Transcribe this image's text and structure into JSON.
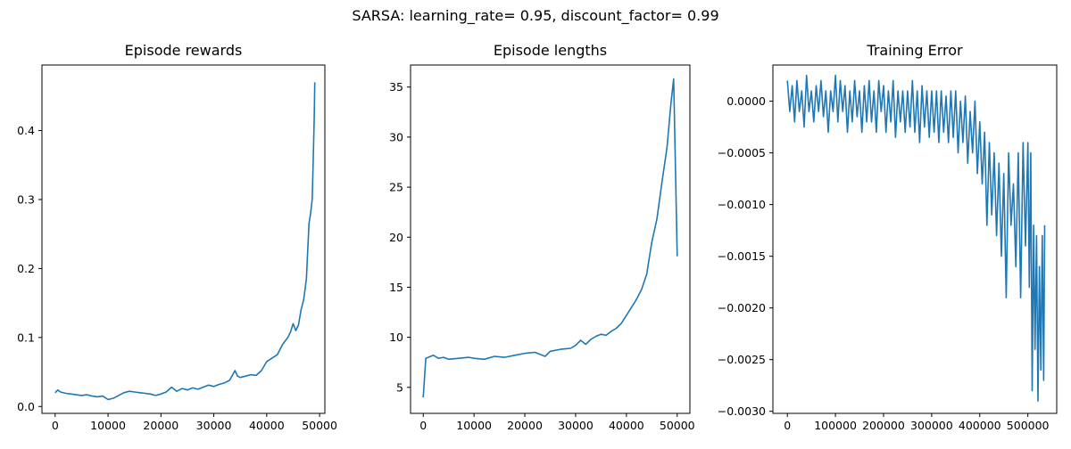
{
  "suptitle": "SARSA: learning_rate= 0.95, discount_factor= 0.99",
  "chart_data": [
    {
      "type": "line",
      "title": "Episode rewards",
      "xlabel": "",
      "ylabel": "",
      "xlim": [
        -2500,
        51000
      ],
      "ylim": [
        -0.01,
        0.495
      ],
      "xticks": [
        0,
        10000,
        20000,
        30000,
        40000,
        50000
      ],
      "xtick_labels": [
        "0",
        "10000",
        "20000",
        "30000",
        "40000",
        "50000"
      ],
      "yticks": [
        0.0,
        0.1,
        0.2,
        0.3,
        0.4
      ],
      "ytick_labels": [
        "0.0",
        "0.1",
        "0.2",
        "0.3",
        "0.4"
      ],
      "grid": false,
      "series": [
        {
          "color": "#1f77b4",
          "points": [
            [
              0,
              0.02
            ],
            [
              500,
              0.024
            ],
            [
              1000,
              0.021
            ],
            [
              2000,
              0.019
            ],
            [
              3000,
              0.018
            ],
            [
              4000,
              0.017
            ],
            [
              5000,
              0.016
            ],
            [
              6000,
              0.017
            ],
            [
              7000,
              0.015
            ],
            [
              8000,
              0.014
            ],
            [
              9000,
              0.015
            ],
            [
              10000,
              0.01
            ],
            [
              11000,
              0.012
            ],
            [
              12000,
              0.016
            ],
            [
              13000,
              0.02
            ],
            [
              14000,
              0.022
            ],
            [
              15000,
              0.021
            ],
            [
              16000,
              0.02
            ],
            [
              17000,
              0.019
            ],
            [
              18000,
              0.018
            ],
            [
              19000,
              0.016
            ],
            [
              20000,
              0.018
            ],
            [
              21000,
              0.021
            ],
            [
              22000,
              0.028
            ],
            [
              23000,
              0.022
            ],
            [
              24000,
              0.026
            ],
            [
              25000,
              0.024
            ],
            [
              26000,
              0.027
            ],
            [
              27000,
              0.025
            ],
            [
              28000,
              0.028
            ],
            [
              29000,
              0.031
            ],
            [
              30000,
              0.029
            ],
            [
              31000,
              0.032
            ],
            [
              32000,
              0.034
            ],
            [
              33000,
              0.038
            ],
            [
              34000,
              0.052
            ],
            [
              34500,
              0.044
            ],
            [
              35000,
              0.042
            ],
            [
              36000,
              0.044
            ],
            [
              37000,
              0.046
            ],
            [
              38000,
              0.045
            ],
            [
              39000,
              0.052
            ],
            [
              40000,
              0.065
            ],
            [
              41000,
              0.07
            ],
            [
              42000,
              0.075
            ],
            [
              43000,
              0.09
            ],
            [
              44000,
              0.1
            ],
            [
              44500,
              0.108
            ],
            [
              45000,
              0.12
            ],
            [
              45500,
              0.11
            ],
            [
              46000,
              0.118
            ],
            [
              46500,
              0.14
            ],
            [
              47000,
              0.155
            ],
            [
              47500,
              0.185
            ],
            [
              48000,
              0.265
            ],
            [
              48300,
              0.28
            ],
            [
              48600,
              0.3
            ],
            [
              48800,
              0.36
            ],
            [
              49000,
              0.42
            ],
            [
              49100,
              0.47
            ]
          ]
        }
      ]
    },
    {
      "type": "line",
      "title": "Episode lengths",
      "xlabel": "",
      "ylabel": "",
      "xlim": [
        -2500,
        52500
      ],
      "ylim": [
        2.4,
        37.2
      ],
      "xticks": [
        0,
        10000,
        20000,
        30000,
        40000,
        50000
      ],
      "xtick_labels": [
        "0",
        "10000",
        "20000",
        "30000",
        "40000",
        "50000"
      ],
      "yticks": [
        5,
        10,
        15,
        20,
        25,
        30,
        35
      ],
      "ytick_labels": [
        "5",
        "10",
        "15",
        "20",
        "25",
        "30",
        "35"
      ],
      "grid": false,
      "series": [
        {
          "color": "#1f77b4",
          "points": [
            [
              0,
              4.0
            ],
            [
              500,
              7.9
            ],
            [
              1000,
              8.0
            ],
            [
              2000,
              8.2
            ],
            [
              3000,
              7.9
            ],
            [
              4000,
              8.0
            ],
            [
              5000,
              7.8
            ],
            [
              7000,
              7.9
            ],
            [
              9000,
              8.0
            ],
            [
              10000,
              7.9
            ],
            [
              12000,
              7.8
            ],
            [
              14000,
              8.1
            ],
            [
              16000,
              8.0
            ],
            [
              18000,
              8.2
            ],
            [
              20000,
              8.4
            ],
            [
              22000,
              8.5
            ],
            [
              24000,
              8.1
            ],
            [
              25000,
              8.6
            ],
            [
              27000,
              8.8
            ],
            [
              29000,
              8.9
            ],
            [
              30000,
              9.2
            ],
            [
              31000,
              9.7
            ],
            [
              32000,
              9.3
            ],
            [
              33000,
              9.8
            ],
            [
              34000,
              10.1
            ],
            [
              35000,
              10.3
            ],
            [
              36000,
              10.2
            ],
            [
              37000,
              10.6
            ],
            [
              38000,
              10.9
            ],
            [
              39000,
              11.4
            ],
            [
              40000,
              12.2
            ],
            [
              41000,
              13.0
            ],
            [
              42000,
              13.8
            ],
            [
              43000,
              14.8
            ],
            [
              44000,
              16.3
            ],
            [
              45000,
              19.5
            ],
            [
              46000,
              21.8
            ],
            [
              47000,
              25.5
            ],
            [
              48000,
              29.0
            ],
            [
              48800,
              33.5
            ],
            [
              49300,
              35.8
            ],
            [
              50000,
              18.1
            ]
          ]
        }
      ]
    },
    {
      "type": "line",
      "title": "Training Error",
      "xlabel": "",
      "ylabel": "",
      "xlim": [
        -30000,
        560000
      ],
      "ylim": [
        -0.00302,
        0.00035
      ],
      "xticks": [
        0,
        100000,
        200000,
        300000,
        400000,
        500000
      ],
      "xtick_labels": [
        "0",
        "100000",
        "200000",
        "300000",
        "400000",
        "500000"
      ],
      "yticks": [
        0.0,
        -0.0005,
        -0.001,
        -0.0015,
        -0.002,
        -0.0025,
        -0.003
      ],
      "ytick_labels": [
        "0.0000",
        "−0.0005",
        "−0.0010",
        "−0.0015",
        "−0.0020",
        "−0.0025",
        "−0.0030"
      ],
      "grid": false,
      "series": [
        {
          "color": "#1f77b4",
          "points": [
            [
              0,
              0.0002
            ],
            [
              5000,
              -0.0001
            ],
            [
              10000,
              0.00015
            ],
            [
              15000,
              -0.0002
            ],
            [
              20000,
              0.0002
            ],
            [
              25000,
              -0.0001
            ],
            [
              30000,
              0.0001
            ],
            [
              35000,
              -0.00025
            ],
            [
              40000,
              0.00025
            ],
            [
              45000,
              -0.0001
            ],
            [
              50000,
              0.0001
            ],
            [
              55000,
              -0.0002
            ],
            [
              60000,
              0.00015
            ],
            [
              65000,
              -0.0001
            ],
            [
              70000,
              0.0002
            ],
            [
              75000,
              -0.00015
            ],
            [
              80000,
              0.0001
            ],
            [
              85000,
              -0.0003
            ],
            [
              90000,
              0.0001
            ],
            [
              95000,
              -0.0001
            ],
            [
              100000,
              0.00025
            ],
            [
              105000,
              -0.0002
            ],
            [
              110000,
              0.0002
            ],
            [
              115000,
              -0.0001
            ],
            [
              120000,
              0.00015
            ],
            [
              125000,
              -0.0003
            ],
            [
              130000,
              0.0001
            ],
            [
              135000,
              -0.0002
            ],
            [
              140000,
              0.0002
            ],
            [
              145000,
              -0.00015
            ],
            [
              150000,
              0.0001
            ],
            [
              155000,
              -0.0003
            ],
            [
              160000,
              0.00015
            ],
            [
              165000,
              -0.0002
            ],
            [
              170000,
              0.0002
            ],
            [
              175000,
              -0.0002
            ],
            [
              180000,
              0.0001
            ],
            [
              185000,
              -0.0003
            ],
            [
              190000,
              0.0002
            ],
            [
              195000,
              -0.0001
            ],
            [
              200000,
              0.00015
            ],
            [
              205000,
              -0.0003
            ],
            [
              210000,
              0.0001
            ],
            [
              215000,
              -0.0002
            ],
            [
              220000,
              0.0002
            ],
            [
              225000,
              -0.00035
            ],
            [
              230000,
              0.0001
            ],
            [
              235000,
              -0.0002
            ],
            [
              240000,
              0.0001
            ],
            [
              245000,
              -0.0003
            ],
            [
              250000,
              0.0001
            ],
            [
              255000,
              -0.00025
            ],
            [
              260000,
              0.0002
            ],
            [
              265000,
              -0.0003
            ],
            [
              270000,
              0.0001
            ],
            [
              275000,
              -0.0004
            ],
            [
              280000,
              0.00015
            ],
            [
              285000,
              -0.00025
            ],
            [
              290000,
              0.0001
            ],
            [
              295000,
              -0.00035
            ],
            [
              300000,
              0.0001
            ],
            [
              305000,
              -0.0003
            ],
            [
              310000,
              0.0001
            ],
            [
              315000,
              -0.0004
            ],
            [
              320000,
              0.0001
            ],
            [
              325000,
              -0.0003
            ],
            [
              330000,
              5e-05
            ],
            [
              335000,
              -0.0004
            ],
            [
              340000,
              0.0001
            ],
            [
              345000,
              -0.00035
            ],
            [
              350000,
              0.0001
            ],
            [
              355000,
              -0.0005
            ],
            [
              360000,
              0.0
            ],
            [
              365000,
              -0.0004
            ],
            [
              370000,
              5e-05
            ],
            [
              375000,
              -0.0006
            ],
            [
              380000,
              -0.0001
            ],
            [
              385000,
              -0.0005
            ],
            [
              390000,
              0.0
            ],
            [
              395000,
              -0.0007
            ],
            [
              400000,
              -0.0002
            ],
            [
              405000,
              -0.0008
            ],
            [
              410000,
              -0.0003
            ],
            [
              415000,
              -0.0012
            ],
            [
              420000,
              -0.0004
            ],
            [
              425000,
              -0.0011
            ],
            [
              430000,
              -0.0005
            ],
            [
              435000,
              -0.0013
            ],
            [
              440000,
              -0.0006
            ],
            [
              445000,
              -0.0015
            ],
            [
              450000,
              -0.0007
            ],
            [
              455000,
              -0.0019
            ],
            [
              460000,
              -0.0005
            ],
            [
              465000,
              -0.0012
            ],
            [
              470000,
              -0.0008
            ],
            [
              475000,
              -0.0016
            ],
            [
              480000,
              -0.0005
            ],
            [
              485000,
              -0.0019
            ],
            [
              490000,
              -0.0004
            ],
            [
              495000,
              -0.0014
            ],
            [
              500000,
              -0.0004
            ],
            [
              503000,
              -0.0018
            ],
            [
              506000,
              -0.0005
            ],
            [
              509000,
              -0.0028
            ],
            [
              512000,
              -0.0012
            ],
            [
              515000,
              -0.0024
            ],
            [
              518000,
              -0.0013
            ],
            [
              521000,
              -0.0029
            ],
            [
              524000,
              -0.0016
            ],
            [
              527000,
              -0.0026
            ],
            [
              530000,
              -0.0013
            ],
            [
              533000,
              -0.0027
            ],
            [
              535000,
              -0.0012
            ]
          ]
        }
      ]
    }
  ]
}
